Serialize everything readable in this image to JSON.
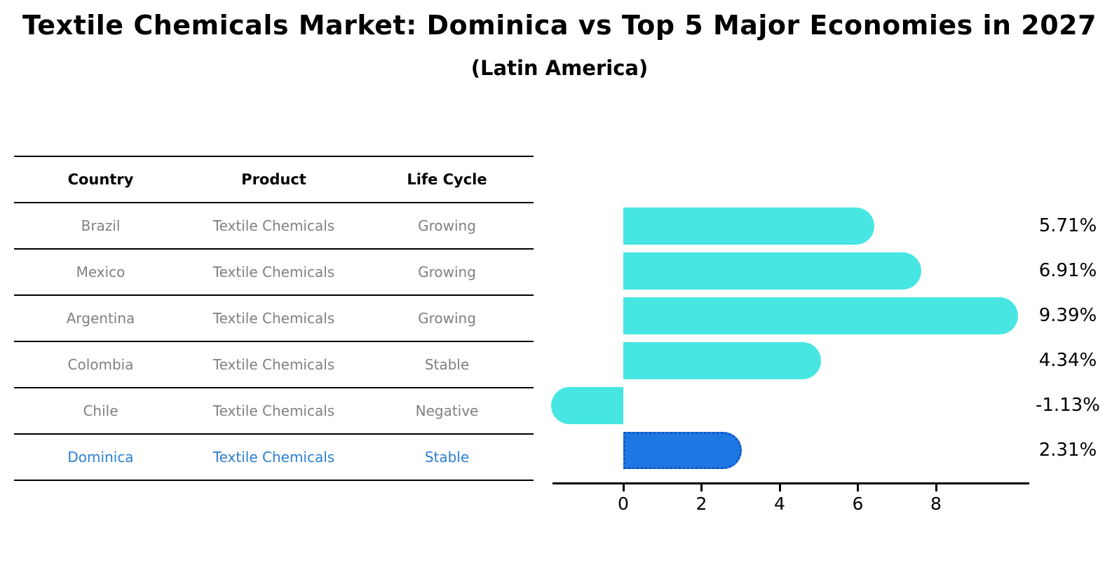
{
  "header": {
    "title": "Textile Chemicals Market: Dominica vs Top 5 Major Economies in 2027",
    "subtitle": "(Latin America)"
  },
  "table": {
    "columns": [
      "Country",
      "Product",
      "Life Cycle"
    ],
    "rows": [
      {
        "country": "Brazil",
        "product": "Textile Chemicals",
        "life_cycle": "Growing",
        "highlight": false
      },
      {
        "country": "Mexico",
        "product": "Textile Chemicals",
        "life_cycle": "Growing",
        "highlight": false
      },
      {
        "country": "Argentina",
        "product": "Textile Chemicals",
        "life_cycle": "Growing",
        "highlight": false
      },
      {
        "country": "Colombia",
        "product": "Textile Chemicals",
        "life_cycle": "Stable",
        "highlight": false
      },
      {
        "country": "Chile",
        "product": "Textile Chemicals",
        "life_cycle": "Negative",
        "highlight": false
      },
      {
        "country": "Dominica",
        "product": "Textile Chemicals",
        "life_cycle": "Stable",
        "highlight": true
      }
    ]
  },
  "chart_data": {
    "type": "bar",
    "orientation": "horizontal",
    "title": "Textile Chemicals Market: Dominica vs Top 5 Major Economies in 2027 (Latin America)",
    "categories": [
      "Brazil",
      "Mexico",
      "Argentina",
      "Colombia",
      "Chile",
      "Dominica"
    ],
    "values": [
      5.71,
      6.91,
      9.39,
      4.34,
      -1.13,
      2.31
    ],
    "value_labels": [
      "5.71%",
      "6.91%",
      "9.39%",
      "4.34%",
      "-1.13%",
      "2.31%"
    ],
    "x_ticks": [
      "0",
      "2",
      "4",
      "6",
      "8"
    ],
    "x_tick_values": [
      0,
      2,
      4,
      6,
      8
    ],
    "xlim": [
      -1.8,
      10.4
    ],
    "grid": false,
    "legend": false,
    "bar_color": "#47e6e3",
    "highlight_index": 5,
    "highlight_color": "#1e78e4",
    "highlight_border_color": "#1157c0"
  },
  "colors": {
    "row_text": "#808080",
    "highlight_text": "#2b80d0",
    "axis": "#000000"
  }
}
